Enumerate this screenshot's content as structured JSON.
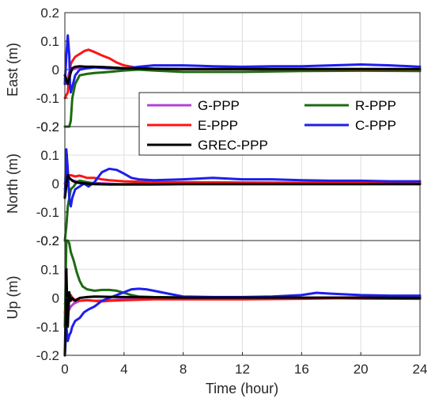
{
  "chart_data": {
    "type": "line",
    "xlabel": "Time (hour)",
    "xlim": [
      0,
      24
    ],
    "xticks": [
      0,
      4,
      8,
      12,
      16,
      20,
      24
    ],
    "grid": true,
    "legend": {
      "placement": "bottom of top panel",
      "entries": [
        {
          "name": "G-PPP",
          "color": "#b041d8"
        },
        {
          "name": "R-PPP",
          "color": "#1c6b12"
        },
        {
          "name": "E-PPP",
          "color": "#ff1414"
        },
        {
          "name": "C-PPP",
          "color": "#1e1eee"
        },
        {
          "name": "GREC-PPP",
          "color": "#000000"
        }
      ]
    },
    "panels": [
      {
        "ylabel": "East (m)",
        "ylim": [
          -0.2,
          0.2
        ],
        "yticks": [
          "0.2",
          "0.1",
          "0",
          "-0.1",
          "-0.2"
        ],
        "series": [
          {
            "name": "G-PPP",
            "color": "#b041d8",
            "x": [
              0,
              0.1,
              0.2,
              0.3,
              0.5,
              0.8,
              1,
              1.5,
              2,
              3,
              4,
              6,
              8,
              12,
              16,
              20,
              24
            ],
            "y": [
              -0.03,
              -0.05,
              -0.03,
              -0.01,
              0,
              0.005,
              0.008,
              0.01,
              0.01,
              0.008,
              0.005,
              0.003,
              0.002,
              0.002,
              0.002,
              0.002,
              0.001
            ]
          },
          {
            "name": "R-PPP",
            "color": "#1c6b12",
            "x": [
              0,
              0.2,
              0.3,
              0.4,
              0.5,
              0.7,
              1,
              1.5,
              2,
              3,
              4,
              5,
              6,
              8,
              12,
              16,
              20,
              24
            ],
            "y": [
              -0.2,
              -0.2,
              -0.2,
              -0.18,
              -0.1,
              -0.05,
              -0.02,
              -0.015,
              -0.012,
              -0.008,
              -0.003,
              0,
              -0.003,
              -0.008,
              -0.008,
              -0.005,
              -0.004,
              -0.005
            ]
          },
          {
            "name": "E-PPP",
            "color": "#ff1414",
            "x": [
              0,
              0.2,
              0.3,
              0.4,
              0.5,
              0.7,
              1,
              1.3,
              1.6,
              2,
              2.5,
              3,
              3.5,
              4,
              4.5,
              5,
              6,
              8,
              12,
              16,
              20,
              24
            ],
            "y": [
              -0.1,
              -0.08,
              -0.02,
              0.02,
              0.03,
              0.045,
              0.055,
              0.065,
              0.07,
              0.062,
              0.05,
              0.04,
              0.025,
              0.015,
              0.01,
              0.005,
              0.003,
              0.002,
              0.002,
              0.002,
              0.001,
              0.001
            ]
          },
          {
            "name": "C-PPP",
            "color": "#1e1eee",
            "x": [
              0,
              0.1,
              0.2,
              0.3,
              0.35,
              0.4,
              0.5,
              0.7,
              1,
              1.5,
              2,
              3,
              4,
              5,
              6,
              8,
              10,
              12,
              14,
              16,
              18,
              20,
              22,
              24
            ],
            "y": [
              -0.05,
              0.05,
              0.12,
              0.05,
              -0.05,
              -0.08,
              -0.06,
              -0.02,
              0,
              0.005,
              0.008,
              0.005,
              0.003,
              0.01,
              0.015,
              0.015,
              0.012,
              0.01,
              0.012,
              0.012,
              0.015,
              0.018,
              0.015,
              0.01
            ]
          },
          {
            "name": "GREC-PPP",
            "color": "#000000",
            "x": [
              0,
              0.2,
              0.4,
              0.5,
              0.7,
              1,
              1.5,
              2,
              3,
              4,
              6,
              8,
              12,
              16,
              20,
              24
            ],
            "y": [
              -0.02,
              -0.05,
              -0.01,
              0.005,
              0.01,
              0.012,
              0.01,
              0.01,
              0.008,
              0.005,
              0.003,
              0.002,
              0.002,
              0.002,
              0.002,
              0.002
            ]
          }
        ]
      },
      {
        "ylabel": "North (m)",
        "ylim": [
          -0.2,
          0.2
        ],
        "yticks": [
          "0.2",
          "0.1",
          "0",
          "-0.1",
          "-0.2"
        ],
        "series": [
          {
            "name": "G-PPP",
            "color": "#b041d8",
            "x": [
              0,
              0.2,
              0.4,
              0.6,
              0.8,
              1,
              1.5,
              2,
              3,
              4,
              6,
              8,
              12,
              16,
              20,
              24
            ],
            "y": [
              -0.02,
              0.02,
              0.015,
              0.01,
              0.008,
              0.005,
              0.003,
              0.002,
              0,
              -0.003,
              -0.002,
              -0.001,
              0,
              0,
              0,
              0
            ]
          },
          {
            "name": "R-PPP",
            "color": "#1c6b12",
            "x": [
              0,
              0.1,
              0.2,
              0.3,
              0.4,
              0.6,
              0.8,
              1,
              1.5,
              2,
              3,
              4,
              6,
              8,
              12,
              16,
              20,
              24
            ],
            "y": [
              -0.2,
              -0.15,
              -0.08,
              -0.05,
              -0.02,
              -0.01,
              0.005,
              0.01,
              0.005,
              0,
              -0.003,
              -0.002,
              -0.001,
              0,
              0.001,
              0.002,
              0.002,
              0
            ]
          },
          {
            "name": "E-PPP",
            "color": "#ff1414",
            "x": [
              0,
              0.2,
              0.3,
              0.5,
              0.7,
              1,
              1.2,
              1.5,
              2,
              2.5,
              3,
              4,
              6,
              8,
              12,
              16,
              20,
              24
            ],
            "y": [
              0,
              0.02,
              0.03,
              0.028,
              0.025,
              0.028,
              0.025,
              0.02,
              0.02,
              0.015,
              0.012,
              0.008,
              0.005,
              0.005,
              0.004,
              0.003,
              0.003,
              0.002
            ]
          },
          {
            "name": "C-PPP",
            "color": "#1e1eee",
            "x": [
              0,
              0.1,
              0.2,
              0.3,
              0.4,
              0.5,
              0.7,
              1,
              1.3,
              1.6,
              2,
              2.5,
              3,
              3.5,
              4,
              4.5,
              5,
              6,
              8,
              10,
              12,
              14,
              16,
              18,
              20,
              22,
              24
            ],
            "y": [
              -0.05,
              0.12,
              0.05,
              -0.05,
              -0.08,
              -0.05,
              -0.02,
              -0.01,
              0,
              -0.01,
              0.005,
              0.04,
              0.052,
              0.048,
              0.035,
              0.02,
              0.015,
              0.012,
              0.015,
              0.02,
              0.015,
              0.015,
              0.012,
              0.01,
              0.01,
              0.008,
              0.008
            ]
          },
          {
            "name": "GREC-PPP",
            "color": "#000000",
            "x": [
              0,
              0.2,
              0.3,
              0.5,
              0.7,
              1,
              1.5,
              2,
              3,
              4,
              6,
              8,
              12,
              16,
              20,
              24
            ],
            "y": [
              -0.05,
              0.03,
              0.02,
              0.01,
              0.005,
              0.002,
              0,
              -0.002,
              -0.003,
              -0.003,
              -0.003,
              -0.002,
              -0.002,
              -0.002,
              -0.002,
              -0.002
            ]
          }
        ]
      },
      {
        "ylabel": "Up (m)",
        "ylim": [
          -0.2,
          0.2
        ],
        "yticks": [
          "0.2",
          "0.1",
          "0",
          "-0.1",
          "-0.2"
        ],
        "series": [
          {
            "name": "G-PPP",
            "color": "#b041d8",
            "x": [
              0,
              0.2,
              0.4,
              0.6,
              0.8,
              1,
              1.5,
              2,
              3,
              4,
              6,
              8,
              12,
              16,
              20,
              24
            ],
            "y": [
              -0.02,
              -0.05,
              -0.03,
              -0.02,
              -0.015,
              -0.01,
              -0.008,
              -0.01,
              -0.008,
              -0.005,
              -0.004,
              -0.002,
              -0.002,
              0,
              0.002,
              0.002
            ]
          },
          {
            "name": "R-PPP",
            "color": "#1c6b12",
            "x": [
              0,
              0.1,
              0.2,
              0.3,
              0.4,
              0.6,
              0.8,
              1,
              1.2,
              1.5,
              2,
              2.5,
              3,
              3.5,
              4,
              4.5,
              5,
              6,
              8,
              12,
              16,
              20,
              24
            ],
            "y": [
              -0.1,
              0.2,
              0.2,
              0.19,
              0.16,
              0.13,
              0.09,
              0.06,
              0.04,
              0.03,
              0.025,
              0.028,
              0.028,
              0.025,
              0.018,
              0.01,
              0.005,
              0.003,
              0.002,
              0,
              0,
              -0.002,
              -0.003
            ]
          },
          {
            "name": "E-PPP",
            "color": "#ff1414",
            "x": [
              0,
              0.2,
              0.4,
              0.6,
              0.8,
              1,
              1.5,
              2,
              2.5,
              3,
              4,
              6,
              8,
              12,
              16,
              20,
              24
            ],
            "y": [
              -0.05,
              -0.02,
              0.01,
              -0.01,
              -0.005,
              -0.01,
              -0.008,
              -0.01,
              -0.012,
              -0.01,
              -0.008,
              -0.005,
              -0.005,
              -0.005,
              -0.003,
              0,
              0.003
            ]
          },
          {
            "name": "C-PPP",
            "color": "#1e1eee",
            "x": [
              0,
              0.1,
              0.2,
              0.3,
              0.4,
              0.5,
              0.7,
              1,
              1.3,
              1.6,
              2,
              2.5,
              3,
              3.5,
              4,
              4.5,
              5,
              5.5,
              6,
              7,
              8,
              10,
              12,
              14,
              16,
              17,
              18,
              20,
              22,
              24
            ],
            "y": [
              -0.2,
              -0.1,
              -0.15,
              -0.13,
              -0.12,
              -0.1,
              -0.08,
              -0.07,
              -0.05,
              -0.04,
              -0.03,
              -0.01,
              0,
              0.01,
              0.02,
              0.03,
              0.032,
              0.03,
              0.025,
              0.015,
              0.005,
              0.003,
              0.003,
              0.005,
              0.01,
              0.018,
              0.015,
              0.01,
              0.008,
              0.008
            ]
          },
          {
            "name": "GREC-PPP",
            "color": "#000000",
            "x": [
              0,
              0.1,
              0.2,
              0.3,
              0.4,
              0.5,
              0.7,
              1,
              1.5,
              2,
              3,
              4,
              6,
              8,
              12,
              16,
              20,
              24
            ],
            "y": [
              -0.2,
              0.1,
              -0.1,
              0.02,
              -0.01,
              0,
              -0.01,
              0,
              0.003,
              0.005,
              0.004,
              0.003,
              0.002,
              0.001,
              0.001,
              0.001,
              0.001,
              0
            ]
          }
        ]
      }
    ]
  }
}
